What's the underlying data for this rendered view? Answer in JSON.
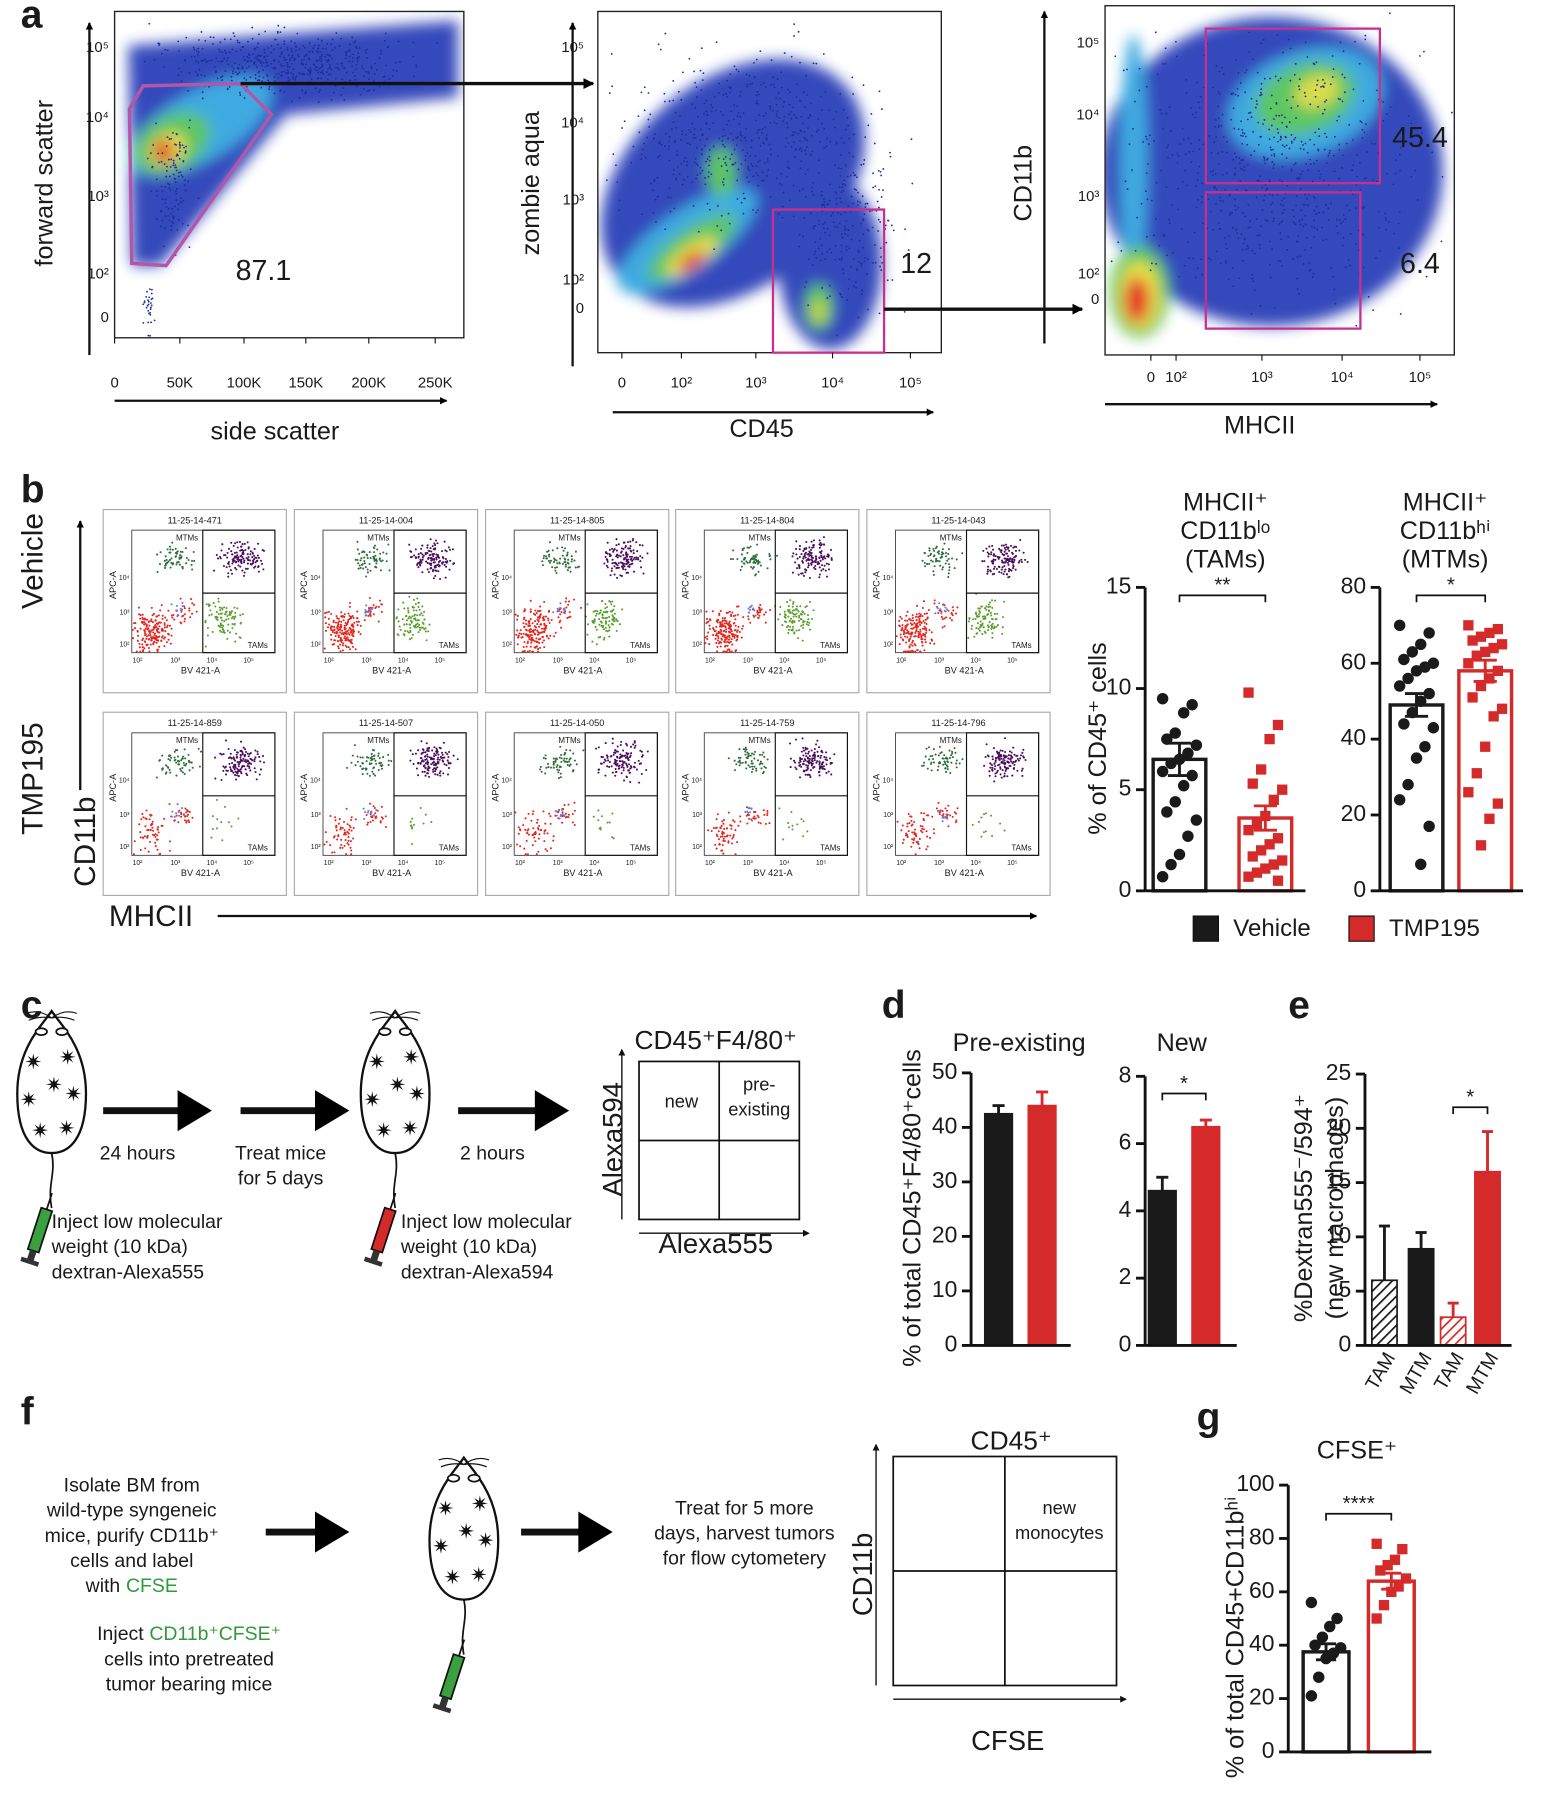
{
  "panel_labels": [
    "a",
    "b",
    "c",
    "d",
    "e",
    "f",
    "g"
  ],
  "flow_a": [
    {
      "xlabel": "side scatter",
      "ylabel": "forward scatter",
      "xticks": [
        "0",
        "50K",
        "100K",
        "150K",
        "200K",
        "250K"
      ],
      "yticks": [
        "10⁵",
        "10⁴",
        "10³",
        "10²",
        "0"
      ],
      "gates": [
        "87.1"
      ]
    },
    {
      "xlabel": "CD45",
      "ylabel": "zombie aqua",
      "xticks": [
        "0",
        "10²",
        "10³",
        "10⁴",
        "10⁵"
      ],
      "yticks": [
        "10⁵",
        "10⁴",
        "10³",
        "10²",
        "0"
      ],
      "gates": [
        "12"
      ]
    },
    {
      "xlabel": "MHCII",
      "ylabel": "CD11b",
      "xticks": [
        "0",
        "10²",
        "10³",
        "10⁴",
        "10⁵"
      ],
      "yticks": [
        "10⁵",
        "10⁴",
        "10³",
        "10²",
        "0"
      ],
      "gates": [
        "45.4",
        "6.4"
      ]
    }
  ],
  "gating_b": {
    "row_labels": [
      "Vehicle",
      "TMP195"
    ],
    "ylabel": "CD11b",
    "xlabel": "MHCII",
    "sample_ids": [
      [
        "11-25-14-471",
        "11-25-14-004",
        "11-25-14-805",
        "11-25-14-804",
        "11-25-14-043"
      ],
      [
        "11-25-14-859",
        "11-25-14-507",
        "11-25-14-050",
        "11-25-14-759",
        "11-25-14-796"
      ]
    ],
    "gate_labels": [
      "MTMs",
      "TAMs"
    ],
    "y_axis_label": "APC-A",
    "x_axis_label": "BV 421-A",
    "ticks": [
      "10²",
      "10³",
      "10⁴",
      "10⁵"
    ]
  },
  "chart_data": [
    {
      "type": "bar",
      "title": [
        "MHCII⁺",
        "CD11bˡᵒ",
        "(TAMs)"
      ],
      "ylabel": "% of CD45⁺ cells",
      "ylim": [
        0,
        15
      ],
      "yticks": [
        0,
        5,
        10,
        15
      ],
      "bar_style": "outline",
      "error_bars": "both",
      "significance": "**",
      "series": [
        {
          "name": "Vehicle",
          "color": "#1a1a1a",
          "marker": "circle",
          "values": [
            6.5
          ],
          "errors": [
            0.8
          ],
          "points": [
            9.5,
            9.2,
            8.8,
            7.8,
            7.5,
            7.2,
            6.8,
            6.5,
            6.3,
            5.9,
            5.7,
            5.2,
            4.4,
            3.9,
            3.5,
            2.7,
            1.8,
            1.3,
            0.7
          ]
        },
        {
          "name": "TMP195",
          "color": "#d42a2a",
          "marker": "square",
          "values": [
            3.6
          ],
          "errors": [
            0.6
          ],
          "points": [
            9.8,
            8.2,
            7.5,
            6.0,
            5.3,
            5.0,
            4.5,
            3.7,
            3.3,
            3.0,
            2.6,
            2.3,
            2.0,
            1.7,
            1.5,
            1.3,
            1.1,
            0.9,
            0.7,
            0.5
          ]
        }
      ]
    },
    {
      "type": "bar",
      "title": [
        "MHCII⁺",
        "CD11bʰⁱ",
        "(MTMs)"
      ],
      "ylim": [
        0,
        80
      ],
      "yticks": [
        0,
        20,
        40,
        60,
        80
      ],
      "bar_style": "outline",
      "error_bars": "both",
      "significance": "*",
      "series": [
        {
          "color": "#1a1a1a",
          "marker": "circle",
          "values": [
            49
          ],
          "errors": [
            3
          ],
          "points": [
            70,
            68,
            65,
            63,
            61,
            60,
            59,
            58,
            56,
            54,
            52,
            50,
            47,
            44,
            43,
            38,
            35,
            28,
            24,
            17,
            7
          ]
        },
        {
          "color": "#d42a2a",
          "marker": "square",
          "values": [
            58
          ],
          "errors": [
            2.8
          ],
          "points": [
            70,
            69,
            68,
            67,
            66,
            65,
            64,
            63,
            62,
            60,
            58,
            56,
            54,
            51,
            48,
            46,
            38,
            31,
            26,
            23,
            19,
            12
          ]
        }
      ]
    },
    {
      "type": "bar",
      "title": "Pre-existing",
      "ylabel": "% of total CD45⁺F4/80⁺cells",
      "ylim": [
        0,
        50
      ],
      "yticks": [
        0,
        10,
        20,
        30,
        40,
        50
      ],
      "bar_style": "solid",
      "error_bars": "up",
      "series": [
        {
          "color": "#1a1a1a",
          "values": [
            42.5
          ],
          "errors": [
            1.5
          ]
        },
        {
          "color": "#d42a2a",
          "values": [
            44
          ],
          "errors": [
            2.5
          ]
        }
      ]
    },
    {
      "type": "bar",
      "title": "New",
      "ylim": [
        0,
        8
      ],
      "yticks": [
        0,
        2,
        4,
        6,
        8
      ],
      "bar_style": "solid",
      "error_bars": "up",
      "significance": "*",
      "series": [
        {
          "color": "#1a1a1a",
          "values": [
            4.6
          ],
          "errors": [
            0.4
          ]
        },
        {
          "color": "#d42a2a",
          "values": [
            6.5
          ],
          "errors": [
            0.2
          ]
        }
      ]
    },
    {
      "type": "bar",
      "ylabel": [
        "%Dextran555⁻/594⁺",
        "(new macrophages)"
      ],
      "ylim": [
        0,
        25
      ],
      "yticks": [
        0,
        5,
        10,
        15,
        20,
        25
      ],
      "bar_style": "solid",
      "error_bars": "up",
      "significance": "*",
      "sig_between": [
        2,
        3
      ],
      "categories": [
        "TAM",
        "MTM",
        "TAM",
        "MTM"
      ],
      "values": [
        6,
        8.9,
        2.6,
        16
      ],
      "errors": [
        5,
        1.5,
        1.3,
        3.7
      ],
      "colors": [
        "#1a1a1a",
        "#1a1a1a",
        "#d42a2a",
        "#d42a2a"
      ],
      "hatched": [
        true,
        false,
        true,
        false
      ]
    },
    {
      "type": "bar",
      "title": "CFSE⁺",
      "ylabel": "% of total CD45+CD11bʰⁱ",
      "ylim": [
        0,
        100
      ],
      "yticks": [
        0,
        20,
        40,
        60,
        80,
        100
      ],
      "bar_style": "outline",
      "error_bars": "both",
      "significance": "****",
      "series": [
        {
          "color": "#1a1a1a",
          "marker": "circle",
          "values": [
            37.5
          ],
          "errors": [
            3
          ],
          "points": [
            56,
            50,
            47,
            43,
            40,
            39,
            37,
            35,
            28,
            21
          ]
        },
        {
          "color": "#d42a2a",
          "marker": "square",
          "values": [
            64
          ],
          "errors": [
            3
          ],
          "points": [
            78,
            76,
            72,
            70,
            68,
            65,
            62,
            60,
            55,
            50
          ]
        }
      ]
    }
  ],
  "diagram_c": {
    "steps": [
      [
        "24 hours"
      ],
      [
        "Treat mice",
        "for 5 days"
      ],
      [
        "2 hours"
      ]
    ],
    "injections": [
      [
        "Inject low molecular",
        "weight (10 kDa)",
        "dextran-Alexa555"
      ],
      [
        "Inject low molecular",
        "weight (10 kDa)",
        "dextran-Alexa594"
      ]
    ],
    "quadrant": {
      "title": "CD45⁺F4/80⁺",
      "ylabel": "Alexa594",
      "xlabel": "Alexa555",
      "top_left": [
        "new"
      ],
      "top_right": [
        "pre-",
        "existing"
      ]
    }
  },
  "diagram_f": {
    "isolate": [
      "Isolate BM from",
      "wild-type syngeneic",
      "mice, purify CD11b⁺",
      "cells and label",
      "with"
    ],
    "isolate_stain": "CFSE",
    "inject": "Inject",
    "inject_cells": "CD11b⁺CFSE⁺",
    "inject_rest": [
      "cells into pretreated",
      "tumor bearing mice"
    ],
    "treat": [
      "Treat for 5 more",
      "days, harvest tumors",
      "for flow cytometery"
    ],
    "quadrant": {
      "title": "CD45⁺",
      "ylabel": "CD11b",
      "xlabel": "CFSE",
      "top_right": [
        "new",
        "monocytes"
      ]
    }
  }
}
